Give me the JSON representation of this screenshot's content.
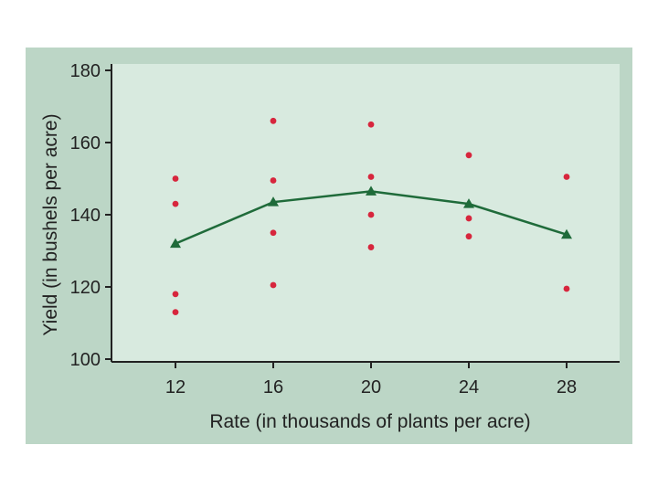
{
  "chart_data": {
    "type": "scatter",
    "xlabel": "Rate (in thousands of plants per acre)",
    "ylabel": "Yield (in bushels per acre)",
    "xlim": [
      12,
      28
    ],
    "ylim": [
      100,
      180
    ],
    "x_ticks": [
      12,
      16,
      20,
      24,
      28
    ],
    "y_ticks": [
      100,
      120,
      140,
      160,
      180
    ],
    "grid": false,
    "series": [
      {
        "kind": "scatter",
        "points": [
          {
            "x": 12,
            "y": 150
          },
          {
            "x": 12,
            "y": 143
          },
          {
            "x": 12,
            "y": 118
          },
          {
            "x": 12,
            "y": 113
          },
          {
            "x": 16,
            "y": 166
          },
          {
            "x": 16,
            "y": 149.5
          },
          {
            "x": 16,
            "y": 135
          },
          {
            "x": 16,
            "y": 120.5
          },
          {
            "x": 20,
            "y": 165
          },
          {
            "x": 20,
            "y": 150.5
          },
          {
            "x": 20,
            "y": 140
          },
          {
            "x": 20,
            "y": 131
          },
          {
            "x": 24,
            "y": 156.5
          },
          {
            "x": 24,
            "y": 139
          },
          {
            "x": 24,
            "y": 134
          },
          {
            "x": 28,
            "y": 150.5
          },
          {
            "x": 28,
            "y": 119.5
          }
        ]
      },
      {
        "kind": "line",
        "points": [
          {
            "x": 12,
            "y": 132
          },
          {
            "x": 16,
            "y": 143.5
          },
          {
            "x": 20,
            "y": 146.5
          },
          {
            "x": 24,
            "y": 143
          },
          {
            "x": 28,
            "y": 134.5
          }
        ]
      }
    ],
    "colors": {
      "background_panel": "#bcd6c6",
      "plot_area": "#d8eadf",
      "points": "#d7263d",
      "line": "#1f6b3a",
      "axis": "#222222"
    }
  }
}
